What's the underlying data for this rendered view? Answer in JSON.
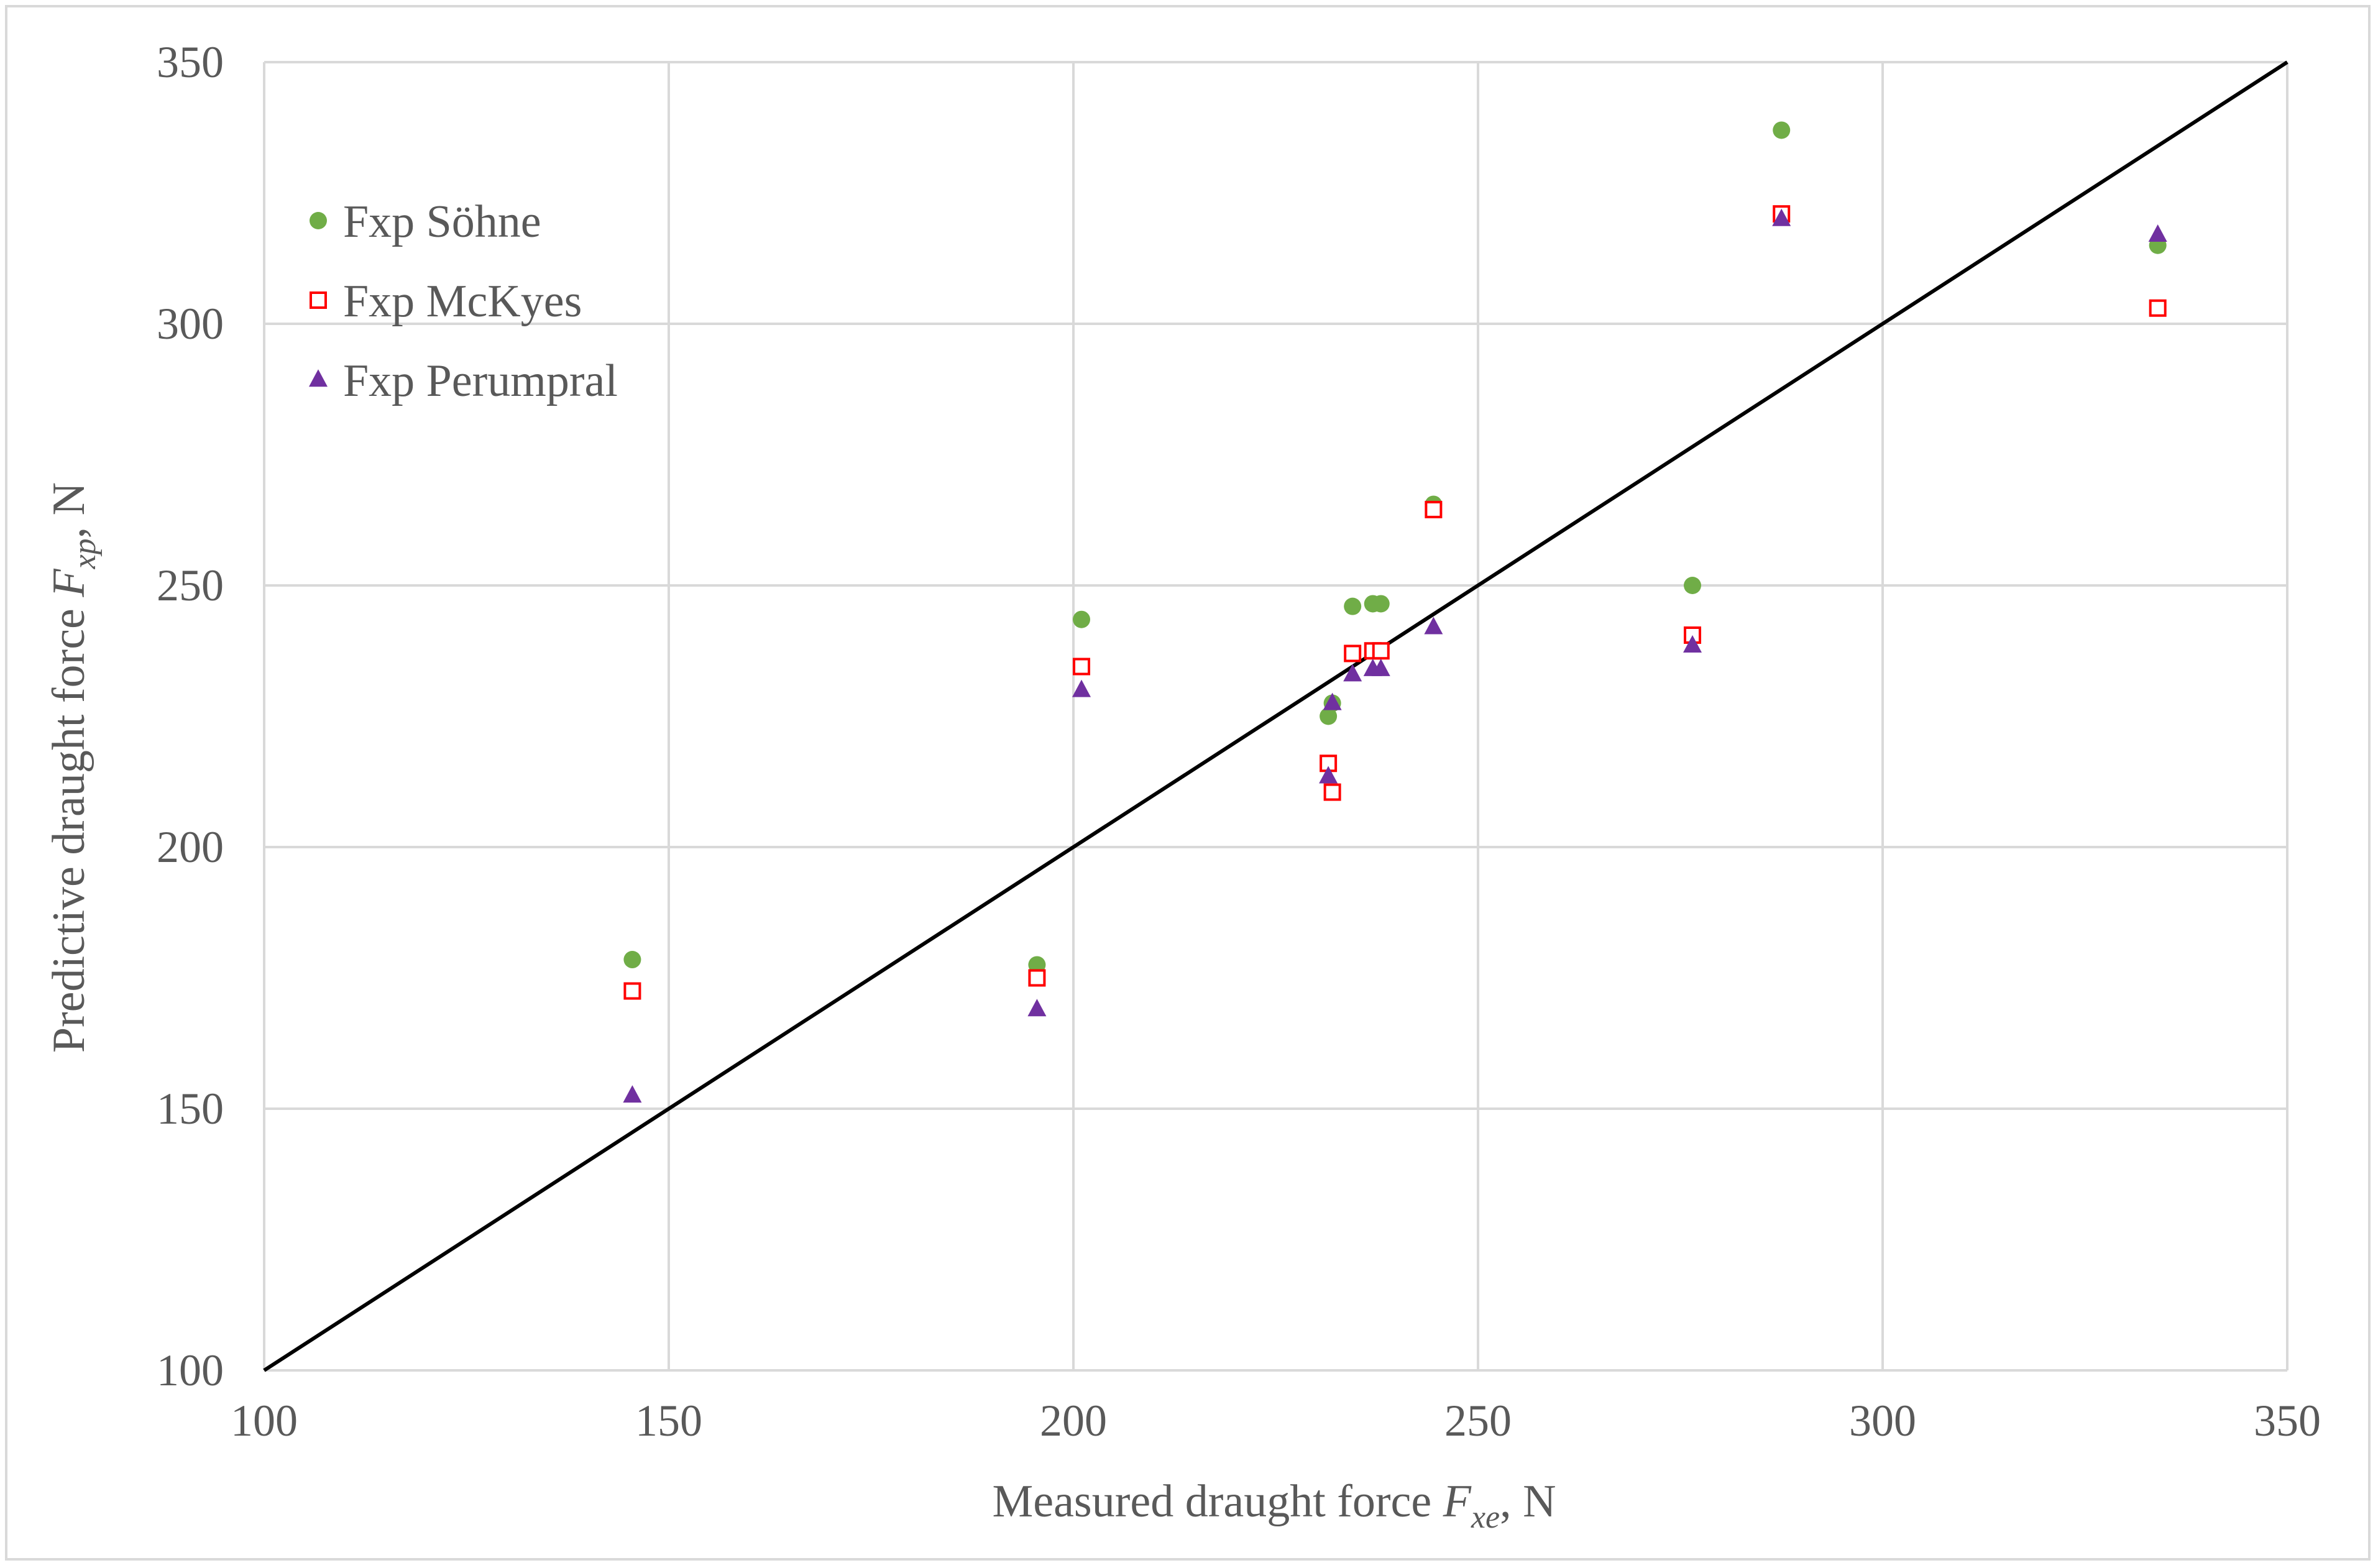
{
  "chart_data": {
    "type": "scatter",
    "title": "",
    "xlabel": {
      "main": "Measured draught force ",
      "symbol": "F",
      "subscript": "xe",
      "unit": ", N"
    },
    "ylabel": {
      "main": "Predictive draught force ",
      "symbol": "F",
      "subscript": "xp",
      "unit": ", N"
    },
    "xlim": [
      100,
      350
    ],
    "ylim": [
      100,
      350
    ],
    "xticks": [
      100,
      150,
      200,
      250,
      300,
      350
    ],
    "yticks": [
      100,
      150,
      200,
      250,
      300,
      350
    ],
    "grid": true,
    "legend_position": "top-left",
    "reference_line": {
      "from": [
        100,
        100
      ],
      "to": [
        350,
        350
      ],
      "color": "#000000"
    },
    "series": [
      {
        "name": "Fxp Söhne",
        "marker": "circle",
        "color": "#70ad47",
        "points": [
          [
            145.5,
            178.5
          ],
          [
            195.5,
            177.5
          ],
          [
            201,
            243.5
          ],
          [
            231.5,
            225
          ],
          [
            232,
            227.5
          ],
          [
            234.5,
            246
          ],
          [
            237,
            246.5
          ],
          [
            238,
            246.5
          ],
          [
            244.5,
            265.5
          ],
          [
            276.5,
            250
          ],
          [
            287.5,
            337
          ],
          [
            334,
            315
          ]
        ]
      },
      {
        "name": "Fxp McKyes",
        "marker": "square-open",
        "color": "#ff0000",
        "points": [
          [
            145.5,
            172.5
          ],
          [
            195.5,
            175
          ],
          [
            201,
            234.5
          ],
          [
            231.5,
            216
          ],
          [
            232,
            210.5
          ],
          [
            234.5,
            237
          ],
          [
            237,
            237.5
          ],
          [
            238,
            237.5
          ],
          [
            244.5,
            264.5
          ],
          [
            276.5,
            240.5
          ],
          [
            287.5,
            321
          ],
          [
            334,
            303
          ]
        ]
      },
      {
        "name": "Fxp Perumpral",
        "marker": "triangle",
        "color": "#7030a0",
        "points": [
          [
            145.5,
            152.5
          ],
          [
            195.5,
            169
          ],
          [
            201,
            230
          ],
          [
            231.5,
            213.5
          ],
          [
            232,
            227.5
          ],
          [
            234.5,
            233
          ],
          [
            237,
            234
          ],
          [
            238,
            234
          ],
          [
            244.5,
            242
          ],
          [
            276.5,
            238.5
          ],
          [
            287.5,
            320
          ],
          [
            334,
            317
          ]
        ]
      }
    ]
  }
}
